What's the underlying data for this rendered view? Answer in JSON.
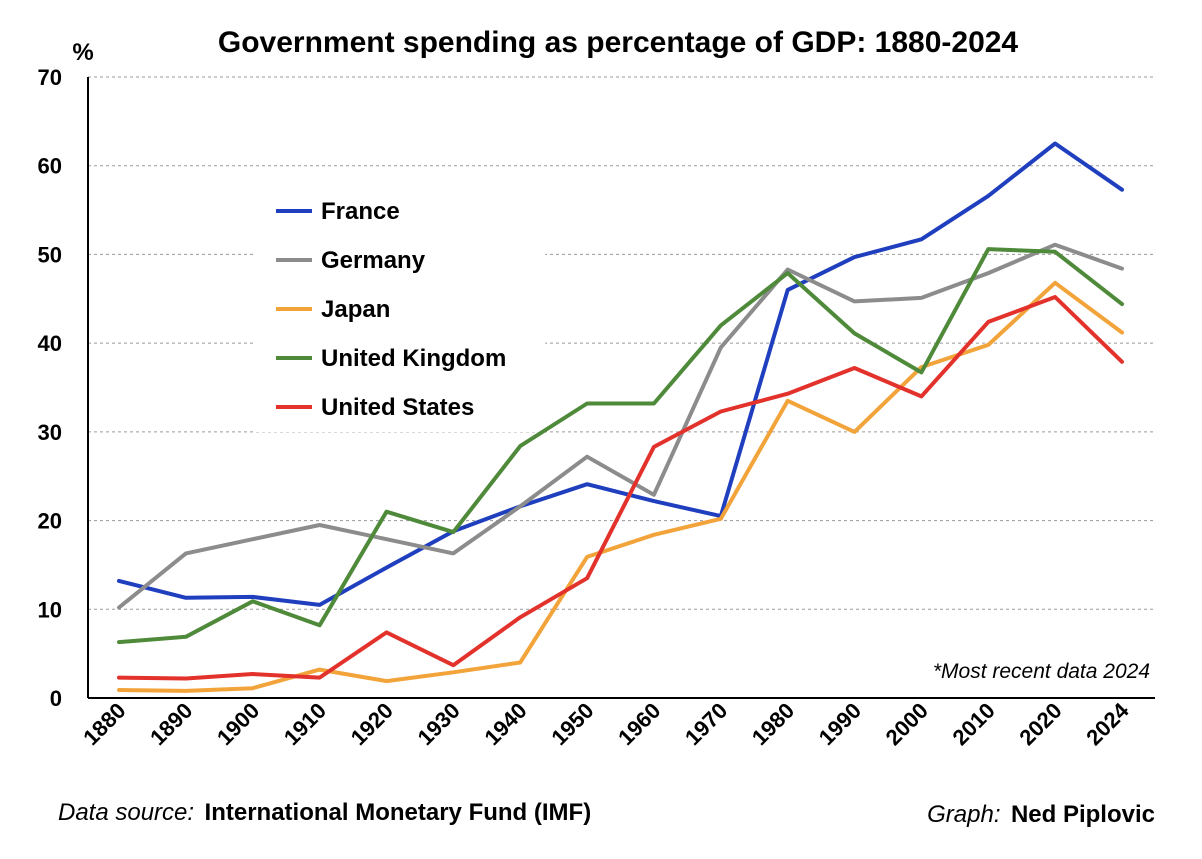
{
  "chart_data": {
    "type": "line",
    "title": "Government spending as percentage of GDP: 1880-2024",
    "ylabel": "%",
    "xlabel": "",
    "categories": [
      "1880",
      "1890",
      "1900",
      "1910",
      "1920",
      "1930",
      "1940",
      "1950",
      "1960",
      "1970",
      "1980",
      "1990",
      "2000",
      "2010",
      "2020",
      "2024"
    ],
    "ylim": [
      0,
      70
    ],
    "yticks": [
      0,
      10,
      20,
      30,
      40,
      50,
      60,
      70
    ],
    "grid": "horizontal dashed",
    "legend_position": "upper-left",
    "series": [
      {
        "name": "France",
        "color": "#1f3fbf",
        "values": [
          13.2,
          11.3,
          11.4,
          10.5,
          14.7,
          18.8,
          21.6,
          24.1,
          22.2,
          20.5,
          46.0,
          49.7,
          51.7,
          56.6,
          62.5,
          57.3
        ]
      },
      {
        "name": "Germany",
        "color": "#8c8c8c",
        "values": [
          10.2,
          16.3,
          17.9,
          19.5,
          17.9,
          16.3,
          21.6,
          27.2,
          22.9,
          39.5,
          48.3,
          44.7,
          45.1,
          47.9,
          51.1,
          48.4
        ]
      },
      {
        "name": "Japan",
        "color": "#f2a33a",
        "values": [
          0.9,
          0.8,
          1.1,
          3.2,
          1.9,
          2.9,
          4.0,
          15.9,
          18.4,
          20.2,
          33.5,
          30.0,
          37.3,
          39.8,
          46.8,
          41.2
        ]
      },
      {
        "name": "United Kingdom",
        "color": "#4e8a3a",
        "values": [
          6.3,
          6.9,
          10.9,
          8.2,
          21.0,
          18.7,
          28.4,
          33.2,
          33.2,
          42.0,
          47.9,
          41.1,
          36.7,
          50.6,
          50.3,
          44.4
        ]
      },
      {
        "name": "United States",
        "color": "#e2322b",
        "values": [
          2.3,
          2.2,
          2.7,
          2.3,
          7.4,
          3.7,
          9.1,
          13.5,
          28.3,
          32.3,
          34.3,
          37.2,
          34.0,
          42.4,
          45.2,
          37.9
        ]
      }
    ],
    "annotation": "*Most recent data 2024"
  },
  "credits": {
    "source_label": "Data source:",
    "source_value": "International Monetary Fund (IMF)",
    "graph_label": "Graph:",
    "graph_value": "Ned Piplovic"
  }
}
